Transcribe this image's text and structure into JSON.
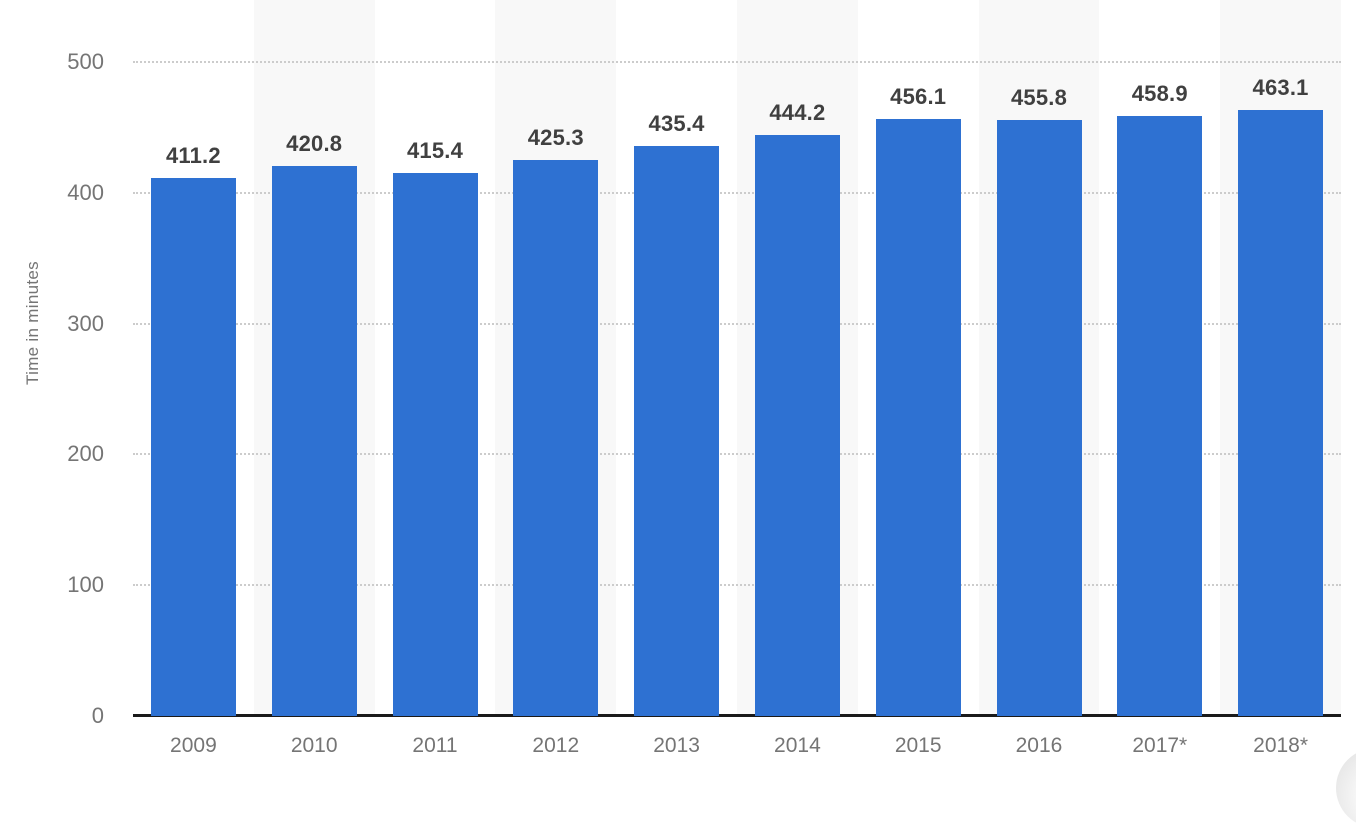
{
  "chart_data": {
    "type": "bar",
    "categories": [
      "2009",
      "2010",
      "2011",
      "2012",
      "2013",
      "2014",
      "2015",
      "2016",
      "2017*",
      "2018*"
    ],
    "values": [
      411.2,
      420.8,
      415.4,
      425.3,
      435.4,
      444.2,
      456.1,
      455.8,
      458.9,
      463.1
    ],
    "title": "",
    "xlabel": "",
    "ylabel": "Time in minutes",
    "ylim": [
      0,
      500
    ],
    "yticks": [
      0,
      100,
      200,
      300,
      400,
      500
    ],
    "grid": "horizontal-dotted",
    "legend": "none",
    "value_labels": "above-bars",
    "colors": {
      "bar": "#2e71d2",
      "stripe": "#f8f8f8",
      "value_label": "#404040",
      "axis_text": "#757575",
      "gridline": "#cccccc",
      "baseline": "#1a1a1a"
    }
  }
}
